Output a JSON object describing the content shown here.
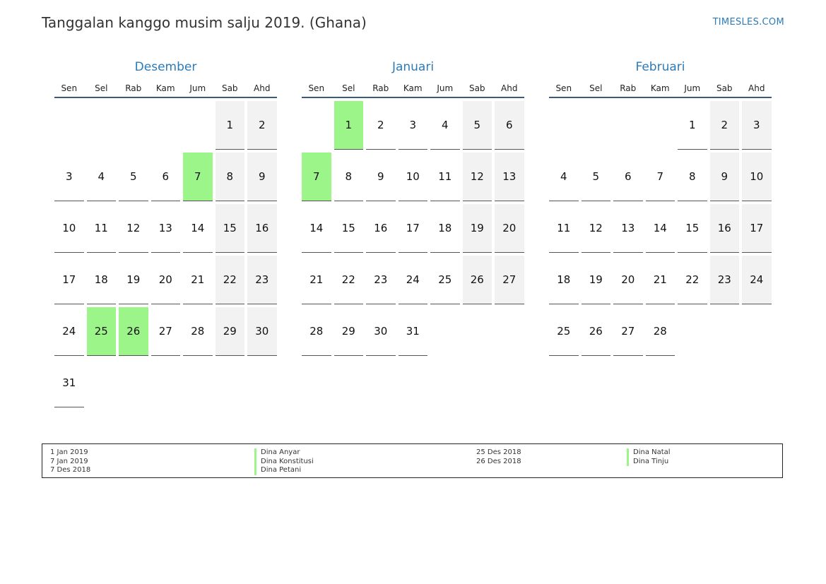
{
  "header": {
    "title": "Tanggalan kanggo musim salju 2019. (Ghana)",
    "site": "TIMESLES.COM"
  },
  "colors": {
    "accent": "#2b7bb9",
    "holiday": "#9cf589",
    "weekend": "#f2f2f2"
  },
  "weekdays": [
    "Sen",
    "Sel",
    "Rab",
    "Kam",
    "Jum",
    "Sab",
    "Ahd"
  ],
  "months": [
    {
      "name": "Desember",
      "weeks": [
        [
          "",
          "",
          "",
          "",
          "",
          "1",
          "2"
        ],
        [
          "3",
          "4",
          "5",
          "6",
          "7",
          "8",
          "9"
        ],
        [
          "10",
          "11",
          "12",
          "13",
          "14",
          "15",
          "16"
        ],
        [
          "17",
          "18",
          "19",
          "20",
          "21",
          "22",
          "23"
        ],
        [
          "24",
          "25",
          "26",
          "27",
          "28",
          "29",
          "30"
        ],
        [
          "31",
          "",
          "",
          "",
          "",
          "",
          ""
        ]
      ],
      "holidays": [
        "7",
        "25",
        "26"
      ]
    },
    {
      "name": "Januari",
      "weeks": [
        [
          "",
          "1",
          "2",
          "3",
          "4",
          "5",
          "6"
        ],
        [
          "7",
          "8",
          "9",
          "10",
          "11",
          "12",
          "13"
        ],
        [
          "14",
          "15",
          "16",
          "17",
          "18",
          "19",
          "20"
        ],
        [
          "21",
          "22",
          "23",
          "24",
          "25",
          "26",
          "27"
        ],
        [
          "28",
          "29",
          "30",
          "31",
          "",
          "",
          ""
        ]
      ],
      "holidays": [
        "1",
        "7"
      ]
    },
    {
      "name": "Februari",
      "weeks": [
        [
          "",
          "",
          "",
          "",
          "1",
          "2",
          "3"
        ],
        [
          "4",
          "5",
          "6",
          "7",
          "8",
          "9",
          "10"
        ],
        [
          "11",
          "12",
          "13",
          "14",
          "15",
          "16",
          "17"
        ],
        [
          "18",
          "19",
          "20",
          "21",
          "22",
          "23",
          "24"
        ],
        [
          "25",
          "26",
          "27",
          "28",
          "",
          "",
          ""
        ]
      ],
      "holidays": []
    }
  ],
  "legend": {
    "left": [
      {
        "date": "1 Jan 2019",
        "name": "Dina Anyar"
      },
      {
        "date": "7 Jan 2019",
        "name": "Dina Konstitusi"
      },
      {
        "date": "7 Des 2018",
        "name": "Dina Petani"
      }
    ],
    "right": [
      {
        "date": "25 Des 2018",
        "name": "Dina Natal"
      },
      {
        "date": "26 Des 2018",
        "name": "Dina Tinju"
      }
    ]
  }
}
